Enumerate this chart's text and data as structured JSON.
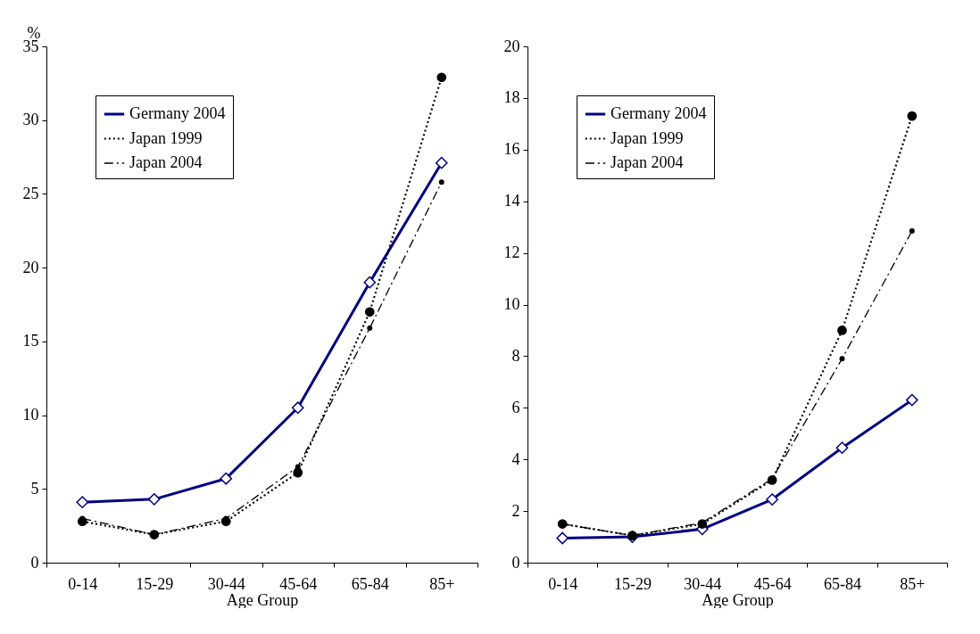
{
  "chart_data": [
    {
      "type": "line",
      "ylabel": "%",
      "xlabel": "Age Group",
      "categories": [
        "0-14",
        "15-29",
        "30-44",
        "45-64",
        "65-84",
        "85+"
      ],
      "ylim": [
        0,
        35
      ],
      "yticks": [
        0,
        5,
        10,
        15,
        20,
        25,
        30,
        35
      ],
      "grid": false,
      "legend": "top left",
      "series": [
        {
          "name": "Germany 2004",
          "color": "#000080",
          "marker": "diamond",
          "line_style": "solid",
          "values": [
            4.1,
            4.3,
            5.7,
            10.5,
            19.0,
            27.1
          ]
        },
        {
          "name": "Japan 1999",
          "color": "#000000",
          "marker": "circle",
          "line_style": "dotted",
          "values": [
            2.8,
            1.9,
            2.8,
            6.1,
            17.0,
            32.9
          ]
        },
        {
          "name": "Japan 2004",
          "color": "#000000",
          "marker": "circle",
          "line_style": "dashed",
          "values": [
            3.0,
            1.9,
            3.0,
            6.5,
            15.9,
            25.8
          ]
        }
      ]
    },
    {
      "type": "line",
      "xlabel": "Age Group",
      "categories": [
        "0-14",
        "15-29",
        "30-44",
        "45-64",
        "65-84",
        "85+"
      ],
      "ylim": [
        0,
        20
      ],
      "yticks": [
        0,
        2,
        4,
        6,
        8,
        10,
        12,
        14,
        16,
        18,
        20
      ],
      "grid": false,
      "legend": "top left",
      "series": [
        {
          "name": "Germany 2004",
          "color": "#000080",
          "marker": "diamond",
          "line_style": "solid",
          "values": [
            0.95,
            1.0,
            1.3,
            2.45,
            4.45,
            6.3
          ]
        },
        {
          "name": "Japan 1999",
          "color": "#000000",
          "marker": "circle",
          "line_style": "dotted",
          "values": [
            1.5,
            1.05,
            1.5,
            3.2,
            9.0,
            17.3
          ]
        },
        {
          "name": "Japan 2004",
          "color": "#000000",
          "marker": "circle",
          "line_style": "dashed",
          "values": [
            1.5,
            1.05,
            1.55,
            3.25,
            7.9,
            12.85
          ]
        }
      ]
    }
  ]
}
